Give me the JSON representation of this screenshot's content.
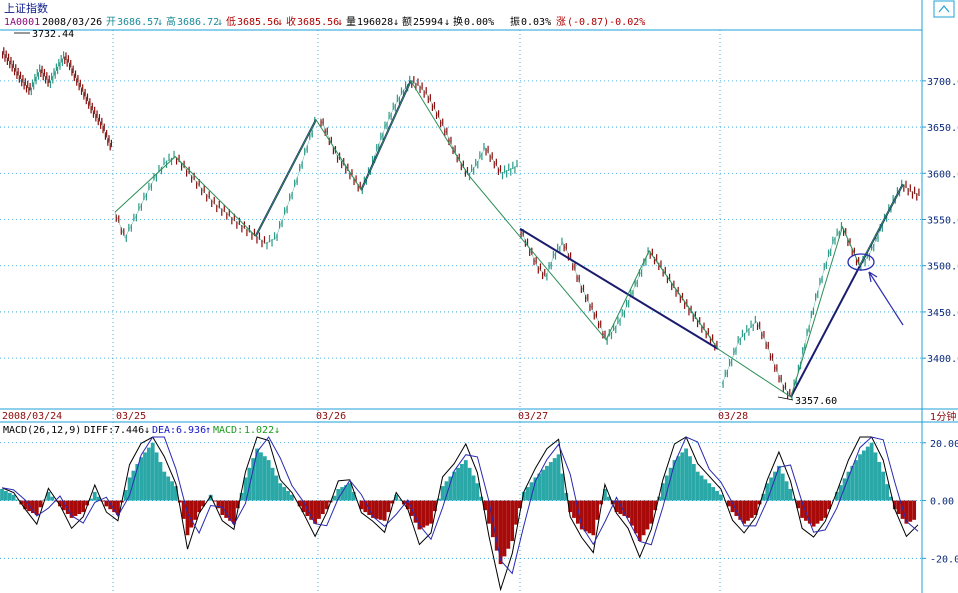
{
  "header": {
    "title": "上证指数",
    "code": "1A0001",
    "date": "2008/03/26",
    "open_label": "开",
    "open_value": "3686.57",
    "high_label": "高",
    "high_value": "3686.72",
    "low_label": "低",
    "low_value": "3685.56",
    "close_label": "收",
    "close_value": "3685.56",
    "volume_label": "量",
    "volume_value": "196028",
    "amount_label": "额",
    "amount_value": "25994",
    "turnover_label": "换",
    "turnover_value": "0.00%",
    "amplitude_label": "振",
    "amplitude_value": "0.03%",
    "change_label": "涨",
    "change_value": "(-0.87)-0.02%"
  },
  "macd_legend": {
    "name": "MACD(26,12,9)",
    "diff_label": "DIFF:",
    "diff_value": "7.446",
    "dea_label": "DEA:",
    "dea_value": "6.936",
    "macd_label": "MACD:",
    "macd_value": "1.022"
  },
  "annotations": {
    "high_label": "3732.44",
    "low_label": "3357.60"
  },
  "period_label": "1分钟",
  "colors": {
    "background": "#ffffff",
    "grid": "#1e9fd8",
    "up": "#2a9a86",
    "down": "#8c0a0a",
    "trend": "#1b1c6e",
    "zigzag": "#2b8f57",
    "axis_text": "#0a2a7a",
    "diff_line": "#000000",
    "dea_line": "#2a2ab0",
    "hist_up": "#2aa8a8",
    "hist_down": "#a80a0a",
    "legend_diff": "#000000",
    "legend_dea": "#1414c8",
    "legend_macd": "#1a9a1a"
  },
  "chart_data": [
    {
      "type": "line",
      "name_series": "上证指数",
      "x_tick_labels": [
        "2008/03/24",
        "03/25",
        "03/26",
        "03/27",
        "03/28"
      ],
      "y_tick_labels": [
        "3700.00",
        "3650.00",
        "3600.00",
        "3550.00",
        "3500.00",
        "3450.00",
        "3400.00"
      ],
      "ylim": [
        3345,
        3755
      ],
      "grid": true,
      "series": [
        {
          "values_by_session": [
            [
              3732,
              3725,
              3718,
              3710,
              3702,
              3695,
              3690,
              3702,
              3712,
              3705,
              3698,
              3708,
              3718,
              3726,
              3720,
              3708,
              3698,
              3688,
              3678,
              3668,
              3660,
              3652,
              3638,
              3628
            ],
            [
              3558,
              3530,
              3552,
              3575,
              3596,
              3612,
              3618,
              3605,
              3592,
              3578,
              3566,
              3558,
              3548,
              3540,
              3532,
              3524,
              3530,
              3560,
              3590,
              3625,
              3658
            ],
            [
              3660,
              3640,
              3620,
              3608,
              3596,
              3582,
              3602,
              3628,
              3652,
              3672,
              3688,
              3700,
              3695,
              3685,
              3668,
              3650,
              3630,
              3612,
              3598,
              3610,
              3628,
              3614,
              3600,
              3604,
              3608
            ],
            [
              3540,
              3520,
              3500,
              3488,
              3512,
              3525,
              3505,
              3480,
              3460,
              3442,
              3420,
              3432,
              3448,
              3470,
              3492,
              3516,
              3504,
              3490,
              3475,
              3462,
              3448,
              3436,
              3424,
              3410
            ],
            [
              3372,
              3395,
              3420,
              3430,
              3440,
              3420,
              3395,
              3372,
              3358,
              3390,
              3430,
              3468,
              3500,
              3528,
              3542,
              3520,
              3500,
              3510,
              3530,
              3552,
              3572,
              3588,
              3580,
              3576
            ]
          ]
        }
      ],
      "trend_lines": [
        {
          "from": [
            3522,
            "03/25"
          ],
          "to": [
            3658,
            "03/25"
          ]
        },
        {
          "from": [
            3582,
            "03/26"
          ],
          "to": [
            3700,
            "03/26"
          ]
        },
        {
          "from": [
            3540,
            "03/27"
          ],
          "to": [
            3410,
            "03/27"
          ]
        },
        {
          "from": [
            3358,
            "03/28"
          ],
          "to": [
            3588,
            "03/28"
          ]
        }
      ],
      "high_point": 3732.44,
      "low_point": 3357.6
    },
    {
      "type": "bar",
      "name_series": "MACD(26,12,9)",
      "y_tick_labels": [
        "20.00",
        "0.00",
        "-20.00"
      ],
      "ylim": [
        -32,
        22
      ],
      "grid": true,
      "series": [
        {
          "name": "MACD",
          "values": [
            4,
            2,
            -3,
            -5,
            3,
            -2,
            -6,
            -4,
            3,
            -2,
            -5,
            8,
            15,
            20,
            10,
            5,
            -12,
            -4,
            2,
            -5,
            -8,
            8,
            18,
            14,
            6,
            2,
            -4,
            -8,
            -3,
            4,
            6,
            -3,
            -6,
            -7,
            2,
            -3,
            -10,
            -8,
            5,
            10,
            14,
            6,
            -8,
            -22,
            -14,
            3,
            8,
            12,
            16,
            -4,
            -10,
            -12,
            4,
            -4,
            -6,
            -14,
            -8,
            6,
            14,
            18,
            10,
            6,
            2,
            -4,
            -8,
            -5,
            6,
            12,
            4,
            -6,
            -9,
            -6,
            3,
            10,
            16,
            20,
            10,
            -3,
            -8,
            -6
          ]
        }
      ]
    }
  ]
}
